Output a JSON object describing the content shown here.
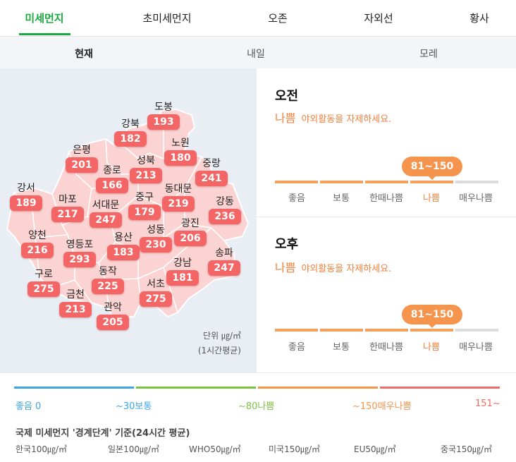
{
  "tabs": [
    "미세먼지",
    "초미세먼지",
    "오존",
    "자외선",
    "황사"
  ],
  "subtabs": [
    "현재",
    "내일",
    "모레"
  ],
  "districts": [
    {
      "name": "도봉",
      "value": "193"
    },
    {
      "name": "강북",
      "value": "182"
    },
    {
      "name": "노원",
      "value": "180"
    },
    {
      "name": "은평",
      "value": "201"
    },
    {
      "name": "종로",
      "value": "166"
    },
    {
      "name": "성북",
      "value": "213"
    },
    {
      "name": "중랑",
      "value": "241"
    },
    {
      "name": "강서",
      "value": "189"
    },
    {
      "name": "마포",
      "value": "217"
    },
    {
      "name": "서대문",
      "value": "247"
    },
    {
      "name": "중구",
      "value": "179"
    },
    {
      "name": "동대문",
      "value": "219"
    },
    {
      "name": "강동",
      "value": "236"
    },
    {
      "name": "양천",
      "value": "216"
    },
    {
      "name": "영등포",
      "value": "293"
    },
    {
      "name": "용산",
      "value": "183"
    },
    {
      "name": "성동",
      "value": "230"
    },
    {
      "name": "광진",
      "value": "206"
    },
    {
      "name": "송파",
      "value": "247"
    },
    {
      "name": "구로",
      "value": "275"
    },
    {
      "name": "동작",
      "value": "225"
    },
    {
      "name": "강남",
      "value": "181"
    },
    {
      "name": "금천",
      "value": "213"
    },
    {
      "name": "서초",
      "value": "275"
    },
    {
      "name": "관악",
      "value": "205"
    }
  ],
  "unit_label": "단위 ㎍/㎥",
  "unit_note": "(1시간평균)",
  "forecast": [
    {
      "period": "오전",
      "grade": "나쁨",
      "message": "야외활동을 자제하세요.",
      "range": "81~150"
    },
    {
      "period": "오후",
      "grade": "나쁨",
      "message": "야외활동을 자제하세요.",
      "range": "81~150"
    }
  ],
  "scale": {
    "labels": [
      "좋음",
      "보통",
      "한때나쁨",
      "나쁨",
      "매우나쁨"
    ],
    "colors": [
      "#f5a05c",
      "#f5a05c",
      "#f5a05c",
      "#f5a05c",
      "#dcdcdc"
    ],
    "active_index": 3,
    "active_color": "#f2813d"
  },
  "legend": {
    "bars": [
      "#3da5e4",
      "#7cc242",
      "#f5944d",
      "#f06a6a"
    ],
    "labels": [
      {
        "text": "좋음 0",
        "color": "#3da5e4"
      },
      {
        "text": "~30보통",
        "color": "#3da5e4"
      },
      {
        "text": "~80나쁨",
        "color": "#7cc242"
      },
      {
        "text": "~150매우나쁨",
        "color": "#f5944d"
      },
      {
        "text": "151~",
        "color": "#f06a6a"
      }
    ]
  },
  "standards": {
    "title": "국제 미세먼지 '경계단계' 기준(24시간 평균)",
    "items": [
      "한국100㎍/㎥",
      "일본100㎍/㎥",
      "WHO50㎍/㎥",
      "미국150㎍/㎥",
      "EU50㎍/㎥",
      "중국150㎍/㎥"
    ]
  },
  "colors": {
    "accent": "#1aab3f",
    "bad": "#f2813d",
    "marker": "#f46565"
  }
}
